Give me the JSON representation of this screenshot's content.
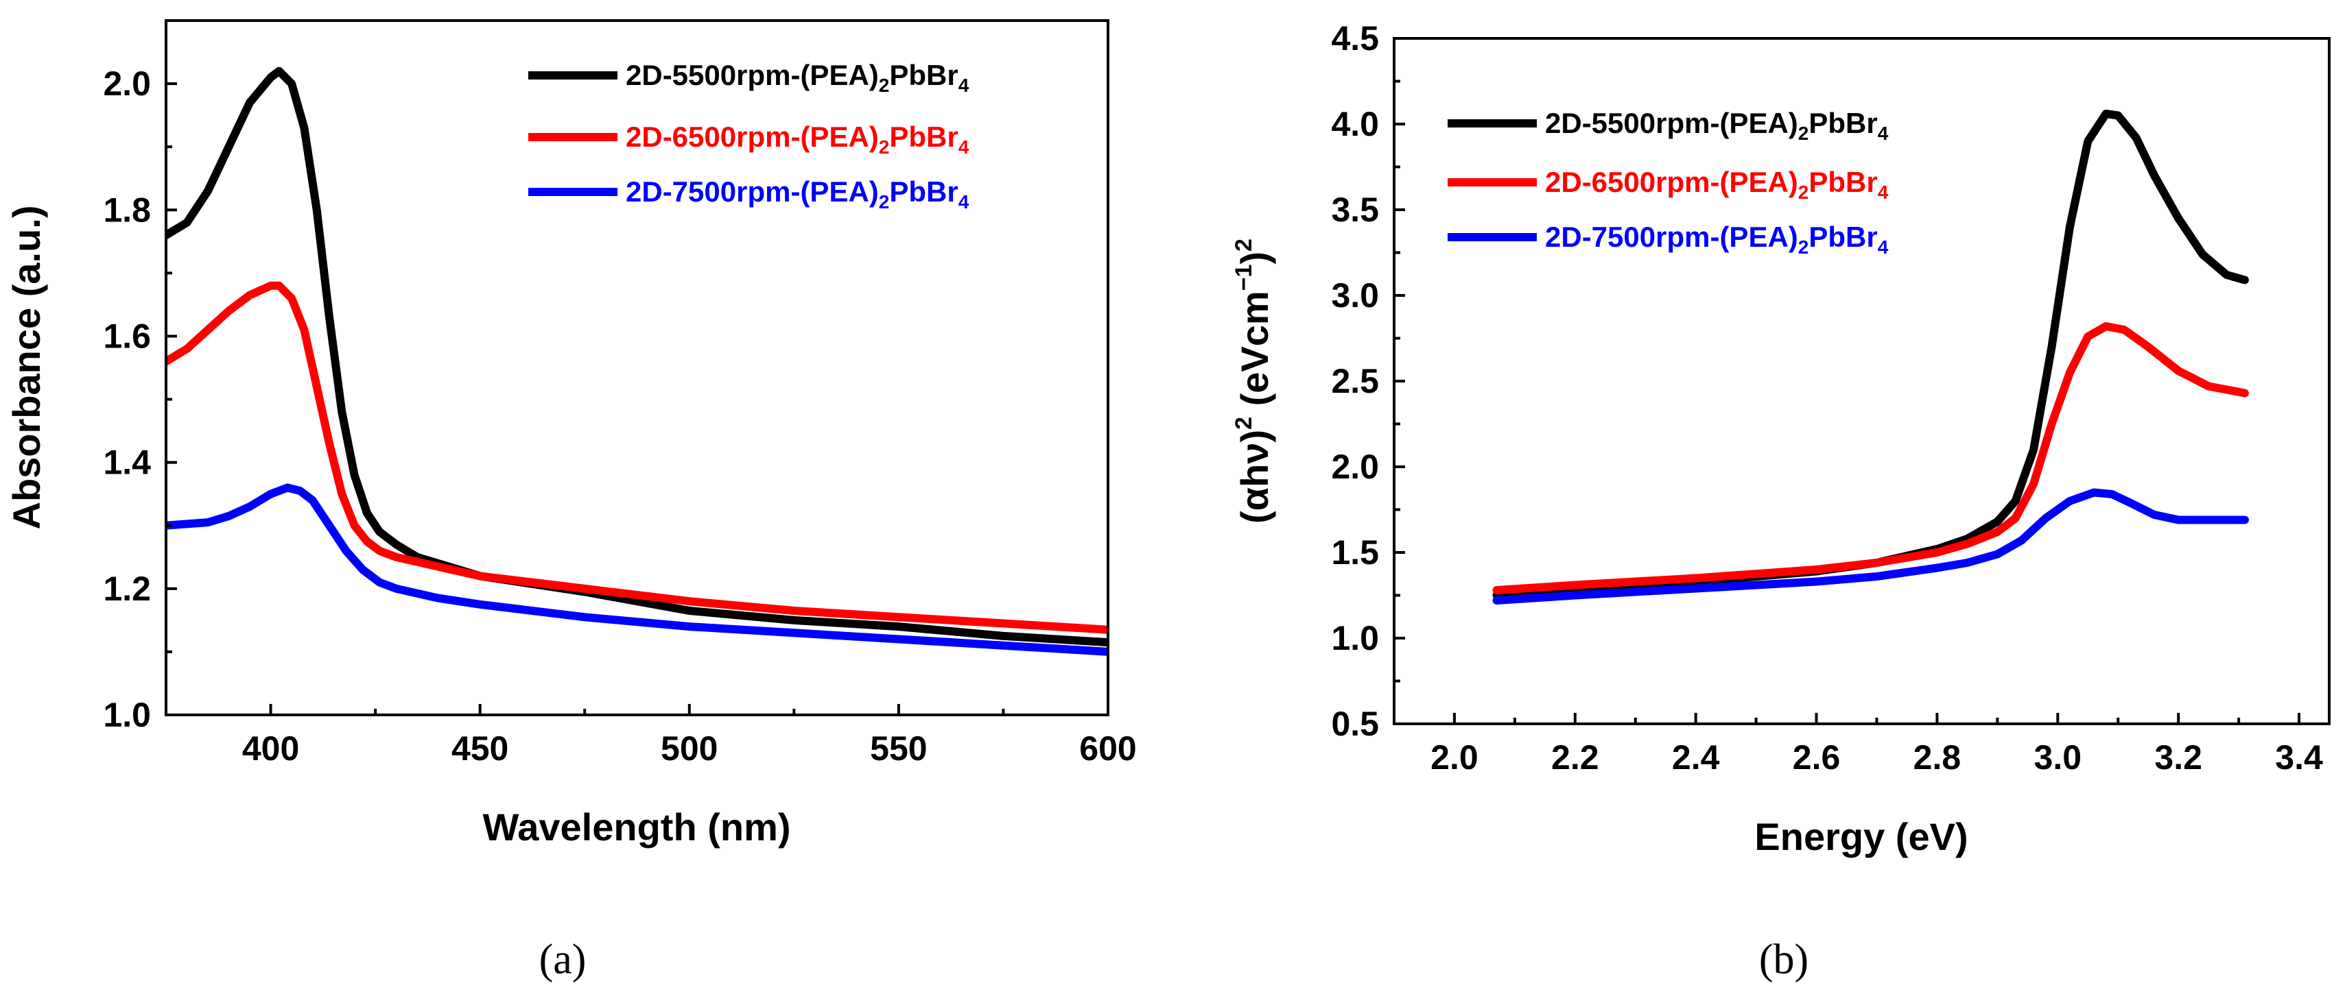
{
  "chart_data": [
    {
      "panel": "a",
      "panel_label": "(a)",
      "type": "line",
      "xlabel": "Wavelength (nm)",
      "ylabel": "Absorbance (a.u.)",
      "xlim": [
        375,
        600
      ],
      "ylim": [
        1.0,
        2.1
      ],
      "xticks": [
        400,
        450,
        500,
        550,
        600
      ],
      "yticks": [
        1.0,
        1.2,
        1.4,
        1.6,
        1.8,
        2.0
      ],
      "legend_position": "top-right",
      "series": [
        {
          "name": "2D-5500rpm-(PEA)2PbBr4",
          "legend": {
            "pre": "2D-5500rpm-(PEA)",
            "sub1": "2",
            "mid": "PbBr",
            "sub2": "4"
          },
          "color": "#000000",
          "points": [
            [
              375,
              1.76
            ],
            [
              380,
              1.78
            ],
            [
              385,
              1.83
            ],
            [
              390,
              1.9
            ],
            [
              395,
              1.97
            ],
            [
              400,
              2.01
            ],
            [
              402,
              2.02
            ],
            [
              405,
              2.0
            ],
            [
              408,
              1.93
            ],
            [
              411,
              1.8
            ],
            [
              414,
              1.63
            ],
            [
              417,
              1.48
            ],
            [
              420,
              1.38
            ],
            [
              423,
              1.32
            ],
            [
              426,
              1.29
            ],
            [
              430,
              1.27
            ],
            [
              435,
              1.25
            ],
            [
              440,
              1.24
            ],
            [
              450,
              1.22
            ],
            [
              475,
              1.195
            ],
            [
              500,
              1.165
            ],
            [
              525,
              1.15
            ],
            [
              550,
              1.14
            ],
            [
              575,
              1.125
            ],
            [
              600,
              1.115
            ]
          ]
        },
        {
          "name": "2D-6500rpm-(PEA)2PbBr4",
          "legend": {
            "pre": "2D-6500rpm-(PEA)",
            "sub1": "2",
            "mid": "PbBr",
            "sub2": "4"
          },
          "color": "#ff0000",
          "points": [
            [
              375,
              1.56
            ],
            [
              380,
              1.58
            ],
            [
              385,
              1.61
            ],
            [
              390,
              1.64
            ],
            [
              395,
              1.665
            ],
            [
              400,
              1.68
            ],
            [
              402,
              1.68
            ],
            [
              405,
              1.66
            ],
            [
              408,
              1.61
            ],
            [
              411,
              1.52
            ],
            [
              414,
              1.43
            ],
            [
              417,
              1.35
            ],
            [
              420,
              1.3
            ],
            [
              423,
              1.275
            ],
            [
              426,
              1.26
            ],
            [
              430,
              1.25
            ],
            [
              440,
              1.235
            ],
            [
              450,
              1.22
            ],
            [
              475,
              1.2
            ],
            [
              500,
              1.18
            ],
            [
              525,
              1.165
            ],
            [
              550,
              1.155
            ],
            [
              575,
              1.145
            ],
            [
              600,
              1.135
            ]
          ]
        },
        {
          "name": "2D-7500rpm-(PEA)2PbBr4",
          "legend": {
            "pre": "2D-7500rpm-(PEA)",
            "sub1": "2",
            "mid": "PbBr",
            "sub2": "4"
          },
          "color": "#0000ff",
          "points": [
            [
              375,
              1.3
            ],
            [
              385,
              1.305
            ],
            [
              390,
              1.315
            ],
            [
              395,
              1.33
            ],
            [
              400,
              1.35
            ],
            [
              404,
              1.36
            ],
            [
              407,
              1.355
            ],
            [
              410,
              1.34
            ],
            [
              414,
              1.3
            ],
            [
              418,
              1.26
            ],
            [
              422,
              1.23
            ],
            [
              426,
              1.21
            ],
            [
              430,
              1.2
            ],
            [
              440,
              1.185
            ],
            [
              450,
              1.175
            ],
            [
              475,
              1.155
            ],
            [
              500,
              1.14
            ],
            [
              525,
              1.13
            ],
            [
              550,
              1.12
            ],
            [
              575,
              1.11
            ],
            [
              600,
              1.1
            ]
          ]
        }
      ],
      "x_tick_labels": [
        "400",
        "450",
        "500",
        "550",
        "600"
      ],
      "y_tick_labels": [
        "1.0",
        "1.2",
        "1.4",
        "1.6",
        "1.8",
        "2.0"
      ]
    },
    {
      "panel": "b",
      "panel_label": "(b)",
      "type": "line",
      "xlabel": "Energy (eV)",
      "ylabel": {
        "alpha_hv": "(αhν)",
        "sup_a": "2",
        "unit_pre": " (eVcm",
        "sup_b": "−1",
        "unit_post": ")",
        "sup_c": "2"
      },
      "xlim": [
        1.9,
        3.45
      ],
      "ylim": [
        0.5,
        4.5
      ],
      "xticks": [
        2.0,
        2.2,
        2.4,
        2.6,
        2.8,
        3.0,
        3.2,
        3.4
      ],
      "yticks": [
        0.5,
        1.0,
        1.5,
        2.0,
        2.5,
        3.0,
        3.5,
        4.0,
        4.5
      ],
      "legend_position": "top-left",
      "series": [
        {
          "name": "2D-5500rpm-(PEA)2PbBr4",
          "legend": {
            "pre": "2D-5500rpm-(PEA)",
            "sub1": "2",
            "mid": "PbBr",
            "sub2": "4"
          },
          "color": "#000000",
          "points": [
            [
              2.07,
              1.25
            ],
            [
              2.2,
              1.28
            ],
            [
              2.4,
              1.33
            ],
            [
              2.6,
              1.39
            ],
            [
              2.7,
              1.44
            ],
            [
              2.8,
              1.52
            ],
            [
              2.85,
              1.58
            ],
            [
              2.9,
              1.68
            ],
            [
              2.93,
              1.8
            ],
            [
              2.96,
              2.1
            ],
            [
              2.99,
              2.7
            ],
            [
              3.02,
              3.4
            ],
            [
              3.05,
              3.9
            ],
            [
              3.08,
              4.06
            ],
            [
              3.1,
              4.05
            ],
            [
              3.13,
              3.92
            ],
            [
              3.16,
              3.7
            ],
            [
              3.2,
              3.45
            ],
            [
              3.24,
              3.24
            ],
            [
              3.28,
              3.12
            ],
            [
              3.31,
              3.09
            ]
          ]
        },
        {
          "name": "2D-6500rpm-(PEA)2PbBr4",
          "legend": {
            "pre": "2D-6500rpm-(PEA)",
            "sub1": "2",
            "mid": "PbBr",
            "sub2": "4"
          },
          "color": "#ff0000",
          "points": [
            [
              2.07,
              1.28
            ],
            [
              2.2,
              1.31
            ],
            [
              2.4,
              1.35
            ],
            [
              2.6,
              1.4
            ],
            [
              2.7,
              1.44
            ],
            [
              2.8,
              1.5
            ],
            [
              2.85,
              1.55
            ],
            [
              2.9,
              1.62
            ],
            [
              2.93,
              1.7
            ],
            [
              2.96,
              1.9
            ],
            [
              2.99,
              2.25
            ],
            [
              3.02,
              2.55
            ],
            [
              3.05,
              2.76
            ],
            [
              3.08,
              2.82
            ],
            [
              3.11,
              2.8
            ],
            [
              3.15,
              2.7
            ],
            [
              3.2,
              2.56
            ],
            [
              3.25,
              2.47
            ],
            [
              3.31,
              2.43
            ]
          ]
        },
        {
          "name": "2D-7500rpm-(PEA)2PbBr4",
          "legend": {
            "pre": "2D-7500rpm-(PEA)",
            "sub1": "2",
            "mid": "PbBr",
            "sub2": "4"
          },
          "color": "#0000ff",
          "points": [
            [
              2.07,
              1.22
            ],
            [
              2.2,
              1.25
            ],
            [
              2.4,
              1.29
            ],
            [
              2.6,
              1.33
            ],
            [
              2.7,
              1.36
            ],
            [
              2.8,
              1.41
            ],
            [
              2.85,
              1.44
            ],
            [
              2.9,
              1.49
            ],
            [
              2.94,
              1.57
            ],
            [
              2.98,
              1.7
            ],
            [
              3.02,
              1.8
            ],
            [
              3.06,
              1.85
            ],
            [
              3.09,
              1.84
            ],
            [
              3.12,
              1.79
            ],
            [
              3.16,
              1.72
            ],
            [
              3.2,
              1.69
            ],
            [
              3.25,
              1.69
            ],
            [
              3.31,
              1.69
            ]
          ]
        }
      ],
      "x_tick_labels": [
        "2.0",
        "2.2",
        "2.4",
        "2.6",
        "2.8",
        "3.0",
        "3.2",
        "3.4"
      ],
      "y_tick_labels": [
        "0.5",
        "1.0",
        "1.5",
        "2.0",
        "2.5",
        "3.0",
        "3.5",
        "4.0",
        "4.5"
      ]
    }
  ]
}
